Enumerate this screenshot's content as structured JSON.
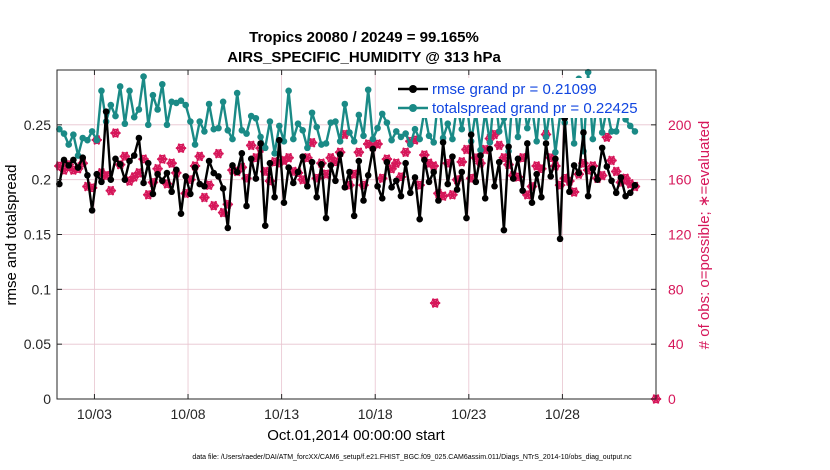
{
  "colors": {
    "rmse": "#000000",
    "totalspread": "#1a8a86",
    "obs": "#d6175a",
    "legend_text": "#1045e0",
    "grid": "#e8c4cf"
  },
  "chart_data": {
    "type": "line",
    "title": "Tropics 20080 / 20249 = 99.165%",
    "subtitle": "AIRS_SPECIFIC_HUMIDITY @ 313 hPa",
    "xlabel": "Oct.01,2014 00:00:00 start",
    "ylabel": "rmse and totalspread",
    "y2label": "# of obs: o=possible; ∗=evaluated",
    "xlim": [
      1,
      33
    ],
    "ylim": [
      0,
      0.3
    ],
    "y2lim": [
      0,
      240
    ],
    "x_ticks": [
      3,
      8,
      13,
      18,
      23,
      28
    ],
    "x_tick_labels": [
      "10/03",
      "10/08",
      "10/13",
      "10/18",
      "10/23",
      "10/28"
    ],
    "y_ticks": [
      0,
      0.05,
      0.1,
      0.15,
      0.2,
      0.25
    ],
    "y_tick_labels": [
      "0",
      "0.05",
      "0.1",
      "0.15",
      "0.2",
      "0.25"
    ],
    "y2_ticks": [
      0,
      40,
      80,
      120,
      160,
      200
    ],
    "y2_tick_labels": [
      "0",
      "40",
      "80",
      "120",
      "160",
      "200"
    ],
    "grid": true,
    "legend": {
      "placement": "top-right",
      "entries": [
        "rmse grand pr = 0.21099",
        "totalspread grand pr = 0.22425"
      ]
    },
    "footnote": "data file: /Users/raeder/DAI/ATM_forcXX/CAM6_setup/f.e21.FHIST_BGC.f09_025.CAM6assim.011/Diags_NTrS_2014-10/obs_diag_output.nc",
    "x": [
      1.125,
      1.375,
      1.625,
      1.875,
      2.125,
      2.375,
      2.625,
      2.875,
      3.125,
      3.375,
      3.625,
      3.875,
      4.125,
      4.375,
      4.625,
      4.875,
      5.125,
      5.375,
      5.625,
      5.875,
      6.125,
      6.375,
      6.625,
      6.875,
      7.125,
      7.375,
      7.625,
      7.875,
      8.125,
      8.375,
      8.625,
      8.875,
      9.125,
      9.375,
      9.625,
      9.875,
      10.125,
      10.375,
      10.625,
      10.875,
      11.125,
      11.375,
      11.625,
      11.875,
      12.125,
      12.375,
      12.625,
      12.875,
      13.125,
      13.375,
      13.625,
      13.875,
      14.125,
      14.375,
      14.625,
      14.875,
      15.125,
      15.375,
      15.625,
      15.875,
      16.125,
      16.375,
      16.625,
      16.875,
      17.125,
      17.375,
      17.625,
      17.875,
      18.125,
      18.375,
      18.625,
      18.875,
      19.125,
      19.375,
      19.625,
      19.875,
      20.125,
      20.375,
      20.625,
      20.875,
      21.125,
      21.375,
      21.625,
      21.875,
      22.125,
      22.375,
      22.625,
      22.875,
      23.125,
      23.375,
      23.625,
      23.875,
      24.125,
      24.375,
      24.625,
      24.875,
      25.125,
      25.375,
      25.625,
      25.875,
      26.125,
      26.375,
      26.625,
      26.875,
      27.125,
      27.375,
      27.625,
      27.875,
      28.125,
      28.375,
      28.625,
      28.875,
      29.125,
      29.375,
      29.625,
      29.875,
      30.125,
      30.375,
      30.625,
      30.875,
      31.125,
      31.375,
      31.625,
      31.875
    ],
    "series": [
      {
        "name": "rmse",
        "values": [
          0.196,
          0.218,
          0.213,
          0.218,
          0.211,
          0.22,
          0.204,
          0.172,
          0.205,
          0.198,
          0.262,
          0.2,
          0.219,
          0.214,
          0.2,
          0.217,
          0.222,
          0.238,
          0.197,
          0.215,
          0.187,
          0.205,
          0.199,
          0.206,
          0.189,
          0.209,
          0.169,
          0.203,
          0.187,
          0.211,
          0.196,
          0.194,
          0.217,
          0.206,
          0.203,
          0.192,
          0.156,
          0.213,
          0.207,
          0.224,
          0.176,
          0.219,
          0.201,
          0.233,
          0.158,
          0.215,
          0.184,
          0.236,
          0.179,
          0.211,
          0.197,
          0.207,
          0.221,
          0.194,
          0.216,
          0.184,
          0.214,
          0.165,
          0.213,
          0.199,
          0.223,
          0.193,
          0.207,
          0.167,
          0.217,
          0.181,
          0.204,
          0.228,
          0.194,
          0.183,
          0.216,
          0.193,
          0.199,
          0.185,
          0.215,
          0.188,
          0.202,
          0.164,
          0.218,
          0.198,
          0.207,
          0.181,
          0.234,
          0.196,
          0.221,
          0.191,
          0.207,
          0.165,
          0.241,
          0.198,
          0.222,
          0.183,
          0.228,
          0.194,
          0.216,
          0.154,
          0.23,
          0.201,
          0.219,
          0.19,
          0.233,
          0.179,
          0.205,
          0.184,
          0.233,
          0.203,
          0.219,
          0.146,
          0.256,
          0.189,
          0.213,
          0.206,
          0.243,
          0.185,
          0.21,
          0.2,
          0.229,
          0.212,
          0.199,
          0.188,
          0.202,
          0.185,
          0.188,
          0.195
        ]
      },
      {
        "name": "totalspread",
        "values": [
          0.246,
          0.242,
          0.232,
          0.241,
          0.222,
          0.238,
          0.236,
          0.244,
          0.236,
          0.281,
          0.253,
          0.268,
          0.258,
          0.285,
          0.251,
          0.281,
          0.257,
          0.264,
          0.294,
          0.25,
          0.277,
          0.264,
          0.287,
          0.25,
          0.271,
          0.27,
          0.272,
          0.268,
          0.253,
          0.232,
          0.253,
          0.244,
          0.269,
          0.246,
          0.247,
          0.271,
          0.245,
          0.237,
          0.279,
          0.245,
          0.242,
          0.258,
          0.256,
          0.239,
          0.229,
          0.253,
          0.224,
          0.249,
          0.235,
          0.281,
          0.237,
          0.251,
          0.245,
          0.229,
          0.261,
          0.248,
          0.232,
          0.233,
          0.252,
          0.253,
          0.235,
          0.269,
          0.243,
          0.235,
          0.259,
          0.24,
          0.282,
          0.237,
          0.247,
          0.26,
          0.252,
          0.236,
          0.244,
          0.239,
          0.242,
          0.232,
          0.246,
          0.237,
          0.263,
          0.24,
          0.234,
          0.276,
          0.238,
          0.251,
          0.237,
          0.268,
          0.246,
          0.271,
          0.235,
          0.262,
          0.227,
          0.262,
          0.234,
          0.281,
          0.244,
          0.256,
          0.226,
          0.286,
          0.239,
          0.276,
          0.247,
          0.266,
          0.235,
          0.281,
          0.239,
          0.268,
          0.225,
          0.259,
          0.252,
          0.281,
          0.233,
          0.292,
          0.226,
          0.298,
          0.237,
          0.278,
          0.243,
          0.265,
          0.244,
          0.244,
          0.266,
          0.255,
          0.249,
          0.244
        ]
      },
      {
        "name": "obs_possible",
        "values": [
          170,
          167,
          171,
          167,
          168,
          172,
          155,
          154,
          189,
          165,
          163,
          152,
          194,
          171,
          177,
          159,
          162,
          165,
          175,
          149,
          158,
          168,
          175,
          157,
          172,
          165,
          183,
          150,
          160,
          170,
          177,
          147,
          156,
          141,
          179,
          136,
          142,
          167,
          166,
          169,
          161,
          185,
          176,
          183,
          166,
          159,
          173,
          172,
          174,
          176,
          166,
          165,
          160,
          176,
          187,
          161,
          172,
          164,
          176,
          173,
          180,
          193,
          156,
          164,
          180,
          156,
          186,
          184,
          186,
          161,
          175,
          168,
          172,
          162,
          180,
          188,
          189,
          156,
          178,
          172,
          170,
          150,
          148,
          172,
          149,
          160,
          173,
          182,
          161,
          176,
          172,
          182,
          190,
          193,
          185,
          176,
          171,
          163,
          162,
          176,
          149,
          155,
          170,
          168,
          193,
          176,
          170,
          156,
          161,
          159,
          151,
          164,
          172,
          167,
          170,
          161,
          163,
          191,
          174,
          166,
          158,
          161,
          157,
          155
        ]
      },
      {
        "name": "obs_evaluated",
        "values": [
          170,
          167,
          171,
          167,
          168,
          172,
          155,
          154,
          189,
          165,
          163,
          152,
          194,
          171,
          177,
          159,
          162,
          165,
          175,
          149,
          158,
          168,
          175,
          157,
          172,
          165,
          183,
          150,
          160,
          170,
          177,
          147,
          156,
          141,
          179,
          136,
          142,
          167,
          166,
          169,
          161,
          185,
          176,
          183,
          166,
          159,
          173,
          172,
          174,
          176,
          166,
          165,
          160,
          176,
          187,
          161,
          172,
          164,
          176,
          173,
          180,
          193,
          156,
          164,
          180,
          156,
          186,
          184,
          186,
          161,
          175,
          168,
          172,
          162,
          180,
          188,
          189,
          156,
          178,
          172,
          170,
          150,
          148,
          172,
          149,
          160,
          173,
          182,
          161,
          176,
          172,
          182,
          190,
          193,
          185,
          176,
          171,
          163,
          162,
          176,
          149,
          155,
          170,
          168,
          193,
          176,
          170,
          156,
          161,
          159,
          151,
          164,
          172,
          167,
          170,
          161,
          163,
          191,
          174,
          166,
          158,
          161,
          157,
          155
        ]
      }
    ],
    "extra_obs_points": [
      {
        "x": 21.2,
        "possible": 70,
        "evaluated": 70
      },
      {
        "x": 33,
        "possible": 0,
        "evaluated": 0
      }
    ],
    "obs_markers": {
      "possible": "o",
      "evaluated": "∗"
    }
  }
}
